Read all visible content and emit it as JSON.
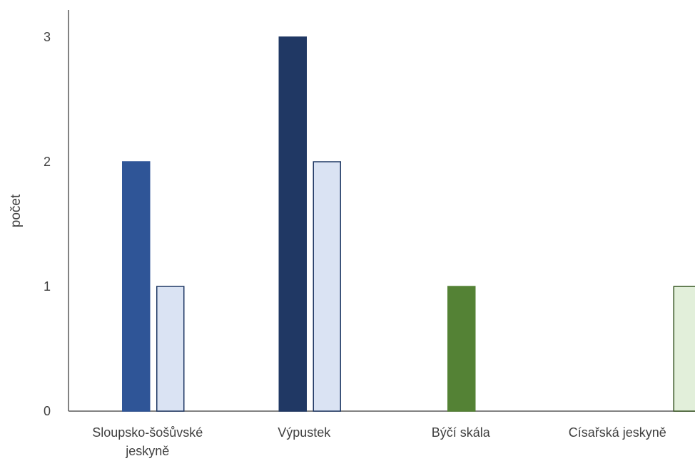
{
  "chart_data": {
    "type": "bar",
    "ylabel": "počet",
    "ylim": [
      0,
      3
    ],
    "yticks": [
      0,
      1,
      2,
      3
    ],
    "grid": false,
    "legend": "none",
    "categories": [
      {
        "label_lines": [
          "Sloupsko-šošůvské",
          "jeskyně"
        ],
        "bars": [
          {
            "value": 2,
            "fill": "#2F5597",
            "stroke": "#2F5597"
          },
          {
            "value": 1,
            "fill": "#DAE3F3",
            "stroke": "#1F3864"
          }
        ]
      },
      {
        "label_lines": [
          "Výpustek"
        ],
        "bars": [
          {
            "value": 3,
            "fill": "#203864",
            "stroke": "#203864"
          },
          {
            "value": 2,
            "fill": "#DAE3F3",
            "stroke": "#1F3864"
          }
        ]
      },
      {
        "label_lines": [
          "Býčí skála"
        ],
        "bars": [
          {
            "value": 1,
            "fill": "#548235",
            "stroke": "#548235"
          }
        ]
      },
      {
        "label_lines": [
          "Císařská jeskyně"
        ],
        "bars": [
          {
            "value": 1,
            "fill": "#E2EFDA",
            "stroke": "#375623"
          }
        ]
      }
    ],
    "axis_color": "#595959"
  }
}
